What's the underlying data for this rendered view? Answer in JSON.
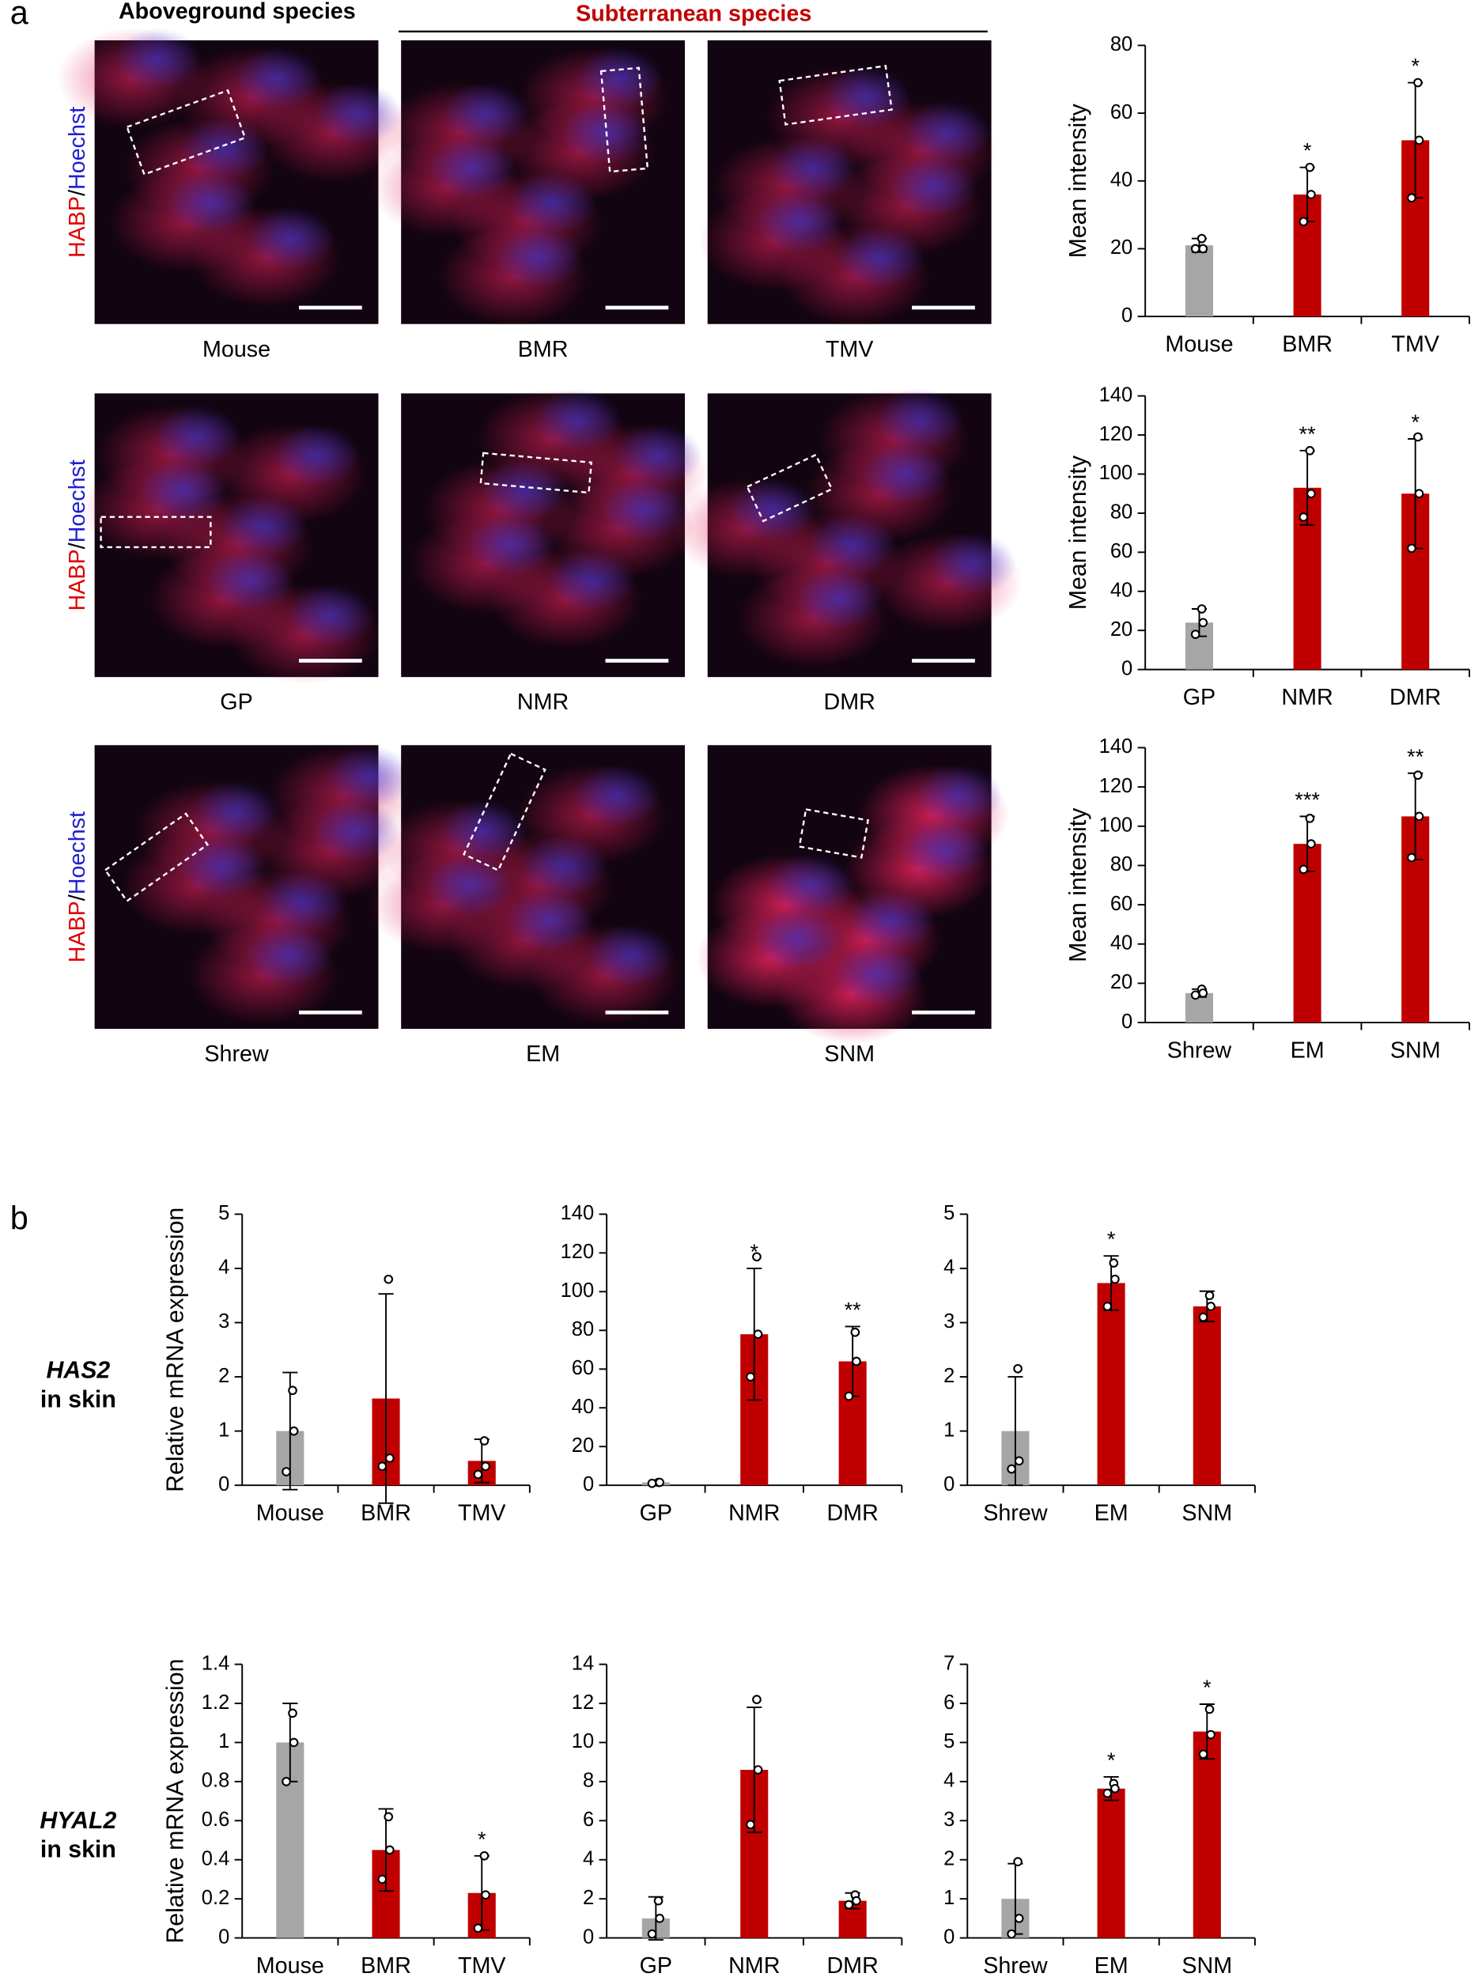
{
  "panel_a": {
    "label": "a",
    "headers": [
      "Aboveground species",
      "Subterranean species"
    ],
    "stain": [
      "HABP",
      "/",
      "Hoechst"
    ],
    "images": [
      [
        "Mouse",
        "BMR",
        "TMV"
      ],
      [
        "GP",
        "NMR",
        "DMR"
      ],
      [
        "Shrew",
        "EM",
        "SNM"
      ]
    ]
  },
  "panel_b": {
    "label": "b",
    "rows": [
      {
        "gene": "HAS2",
        "text": "in skin"
      },
      {
        "gene": "HYAL2",
        "text": "in skin"
      }
    ]
  },
  "chart_data": [
    {
      "type": "bar",
      "ylabel": "Mean intensity",
      "categories": [
        "Mouse",
        "BMR",
        "TMV"
      ],
      "values": [
        21,
        36,
        52
      ],
      "errors": [
        2,
        8,
        17
      ],
      "colors": [
        "#a6a6a6",
        "#c00000",
        "#c00000"
      ],
      "points": [
        [
          23,
          20,
          20
        ],
        [
          44,
          28,
          36
        ],
        [
          69,
          35,
          52
        ]
      ],
      "annotations": [
        null,
        "*",
        "*"
      ],
      "ylim": [
        0,
        80
      ],
      "yticks": [
        0,
        20,
        40,
        60,
        80
      ]
    },
    {
      "type": "bar",
      "ylabel": "Mean intensity",
      "categories": [
        "GP",
        "NMR",
        "DMR"
      ],
      "values": [
        24,
        93,
        90
      ],
      "errors": [
        7,
        19,
        28
      ],
      "colors": [
        "#a6a6a6",
        "#c00000",
        "#c00000"
      ],
      "points": [
        [
          31,
          18,
          24
        ],
        [
          112,
          78,
          90
        ],
        [
          119,
          62,
          90
        ]
      ],
      "annotations": [
        null,
        "**",
        "*"
      ],
      "ylim": [
        0,
        140
      ],
      "yticks": [
        0,
        20,
        40,
        60,
        80,
        100,
        120,
        140
      ]
    },
    {
      "type": "bar",
      "ylabel": "Mean intensity",
      "categories": [
        "Shrew",
        "EM",
        "SNM"
      ],
      "values": [
        15,
        91,
        105
      ],
      "errors": [
        2,
        14,
        22
      ],
      "colors": [
        "#a6a6a6",
        "#c00000",
        "#c00000"
      ],
      "points": [
        [
          17,
          14,
          15
        ],
        [
          104,
          78,
          91
        ],
        [
          126,
          84,
          105
        ]
      ],
      "annotations": [
        null,
        "***",
        "**"
      ],
      "ylim": [
        0,
        140
      ],
      "yticks": [
        0,
        20,
        40,
        60,
        80,
        100,
        120,
        140
      ]
    },
    {
      "type": "bar",
      "ylabel": "Relative mRNA expression",
      "categories": [
        "Mouse",
        "BMR",
        "TMV"
      ],
      "values": [
        1,
        1.6,
        0.45
      ],
      "errors": [
        1.08,
        1.93,
        0.4
      ],
      "colors": [
        "#a6a6a6",
        "#c00000",
        "#c00000"
      ],
      "points": [
        [
          1.75,
          0.25,
          1.0
        ],
        [
          3.8,
          0.35,
          0.5
        ],
        [
          0.82,
          0.2,
          0.35
        ]
      ],
      "annotations": [
        null,
        null,
        null
      ],
      "ylim": [
        0,
        5
      ],
      "yticks": [
        0,
        1,
        2,
        3,
        4,
        5
      ]
    },
    {
      "type": "bar",
      "categories": [
        "GP",
        "NMR",
        "DMR"
      ],
      "values": [
        1.5,
        78,
        64
      ],
      "errors": [
        0.5,
        34,
        18
      ],
      "colors": [
        "#a6a6a6",
        "#c00000",
        "#c00000"
      ],
      "points": [
        [
          1.5,
          1,
          1.5
        ],
        [
          118,
          56,
          78
        ],
        [
          79,
          46,
          64
        ]
      ],
      "annotations": [
        null,
        "*",
        "**"
      ],
      "ylim": [
        0,
        140
      ],
      "yticks": [
        0,
        20,
        40,
        60,
        80,
        100,
        120,
        140
      ]
    },
    {
      "type": "bar",
      "categories": [
        "Shrew",
        "EM",
        "SNM"
      ],
      "values": [
        1,
        3.73,
        3.3
      ],
      "errors": [
        1,
        0.5,
        0.28
      ],
      "colors": [
        "#a6a6a6",
        "#c00000",
        "#c00000"
      ],
      "points": [
        [
          2.15,
          0.3,
          0.45
        ],
        [
          4.1,
          3.3,
          3.8
        ],
        [
          3.5,
          3.1,
          3.3
        ]
      ],
      "annotations": [
        null,
        "*",
        null
      ],
      "ylim": [
        0,
        5
      ],
      "yticks": [
        0,
        1,
        2,
        3,
        4,
        5
      ]
    },
    {
      "type": "bar",
      "ylabel": "Relative mRNA expression",
      "categories": [
        "Mouse",
        "BMR",
        "TMV"
      ],
      "values": [
        1,
        0.45,
        0.23
      ],
      "errors": [
        0.2,
        0.21,
        0.19
      ],
      "colors": [
        "#a6a6a6",
        "#c00000",
        "#c00000"
      ],
      "points": [
        [
          1.15,
          0.8,
          1.0
        ],
        [
          0.62,
          0.3,
          0.45
        ],
        [
          0.42,
          0.05,
          0.22
        ]
      ],
      "annotations": [
        null,
        null,
        "*"
      ],
      "ylim": [
        0,
        1.4
      ],
      "yticks": [
        0,
        0.2,
        0.4,
        0.6,
        0.8,
        1,
        1.2,
        1.4
      ]
    },
    {
      "type": "bar",
      "categories": [
        "GP",
        "NMR",
        "DMR"
      ],
      "values": [
        1,
        8.6,
        1.9
      ],
      "errors": [
        1.1,
        3.2,
        0.4
      ],
      "colors": [
        "#a6a6a6",
        "#c00000",
        "#c00000"
      ],
      "points": [
        [
          1.9,
          0.2,
          1
        ],
        [
          12.2,
          5.8,
          8.6
        ],
        [
          2.2,
          1.7,
          1.9
        ]
      ],
      "annotations": [
        null,
        null,
        null
      ],
      "ylim": [
        0,
        14
      ],
      "yticks": [
        0,
        2,
        4,
        6,
        8,
        10,
        12,
        14
      ]
    },
    {
      "type": "bar",
      "categories": [
        "Shrew",
        "EM",
        "SNM"
      ],
      "values": [
        1,
        3.82,
        5.28
      ],
      "errors": [
        0.9,
        0.3,
        0.7
      ],
      "colors": [
        "#a6a6a6",
        "#c00000",
        "#c00000"
      ],
      "points": [
        [
          1.95,
          0.1,
          0.5
        ],
        [
          3.95,
          3.7,
          3.82
        ],
        [
          5.85,
          4.7,
          5.2
        ]
      ],
      "annotations": [
        null,
        "*",
        "*"
      ],
      "ylim": [
        0,
        7
      ],
      "yticks": [
        0,
        1,
        2,
        3,
        4,
        5,
        6,
        7
      ]
    }
  ]
}
